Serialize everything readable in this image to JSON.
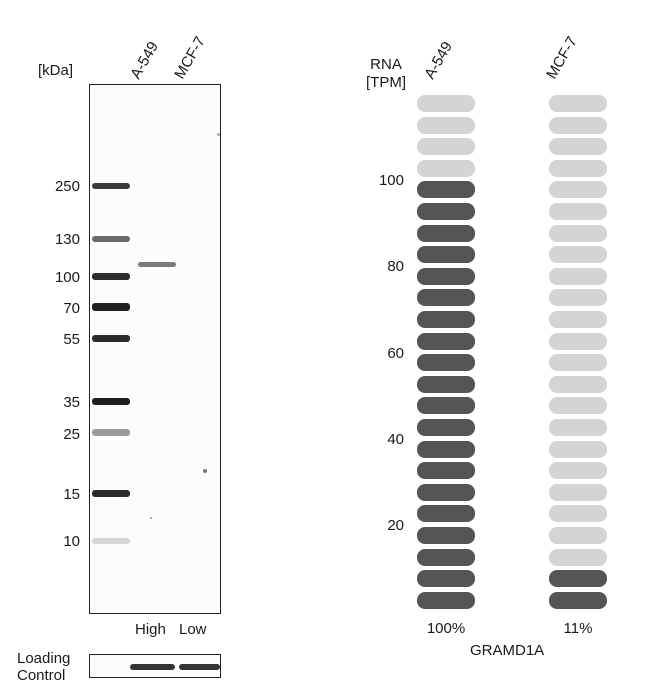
{
  "blot": {
    "unit_label": "[kDa]",
    "lanes": [
      "A-549",
      "MCF-7"
    ],
    "lane_levels": [
      "High",
      "Low"
    ],
    "markers": [
      "250",
      "130",
      "100",
      "70",
      "55",
      "35",
      "25",
      "15",
      "10"
    ],
    "loading_label_line1": "Loading",
    "loading_label_line2": "Control"
  },
  "rna": {
    "axis_line1": "RNA",
    "axis_line2": "[TPM]",
    "samples": [
      "A-549",
      "MCF-7"
    ],
    "y_ticks": [
      "100",
      "80",
      "60",
      "40",
      "20"
    ],
    "gene": "GRAMD1A",
    "colors": {
      "filled": "#555555",
      "empty": "#d4d4d4"
    }
  },
  "chart_data": {
    "type": "bar",
    "categories": [
      "A-549",
      "MCF-7"
    ],
    "values": [
      100,
      11
    ],
    "value_labels": [
      "100%",
      "11%"
    ],
    "ylabel": "RNA [TPM]",
    "xlabel": "GRAMD1A",
    "yticks": [
      20,
      40,
      60,
      80,
      100
    ],
    "segments_total": 24
  }
}
